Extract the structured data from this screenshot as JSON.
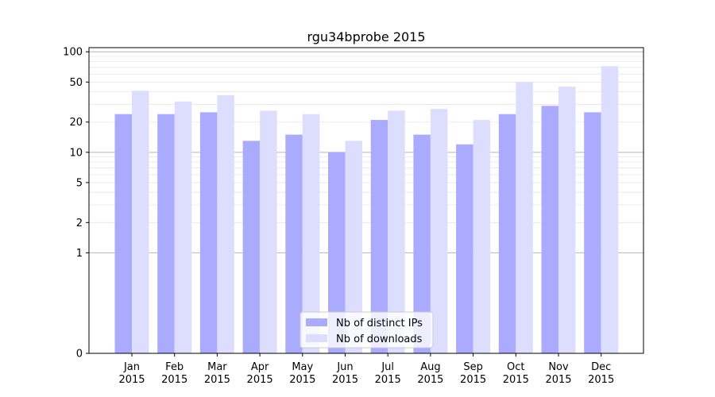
{
  "chart_data": {
    "type": "bar",
    "title": "rgu34bprobe 2015",
    "xlabel": "",
    "ylabel": "",
    "yscale": "symlog",
    "ylim": [
      0,
      110
    ],
    "yticks": [
      0,
      1,
      2,
      5,
      10,
      20,
      50,
      100
    ],
    "ytick_labels": [
      "0",
      "1",
      "2",
      "5",
      "10",
      "20",
      "50",
      "100"
    ],
    "categories": [
      [
        "Jan",
        "2015"
      ],
      [
        "Feb",
        "2015"
      ],
      [
        "Mar",
        "2015"
      ],
      [
        "Apr",
        "2015"
      ],
      [
        "May",
        "2015"
      ],
      [
        "Jun",
        "2015"
      ],
      [
        "Jul",
        "2015"
      ],
      [
        "Aug",
        "2015"
      ],
      [
        "Sep",
        "2015"
      ],
      [
        "Oct",
        "2015"
      ],
      [
        "Nov",
        "2015"
      ],
      [
        "Dec",
        "2015"
      ]
    ],
    "series": [
      {
        "name": "Nb of distinct IPs",
        "color": "#aaaaff",
        "values": [
          24,
          24,
          25,
          13,
          15,
          10,
          21,
          15,
          12,
          24,
          29,
          25
        ]
      },
      {
        "name": "Nb of downloads",
        "color": "#ddddff",
        "values": [
          41,
          32,
          37,
          26,
          24,
          13,
          26,
          27,
          21,
          50,
          45,
          72
        ]
      }
    ],
    "grid": true,
    "legend_position": "bottom-center"
  }
}
